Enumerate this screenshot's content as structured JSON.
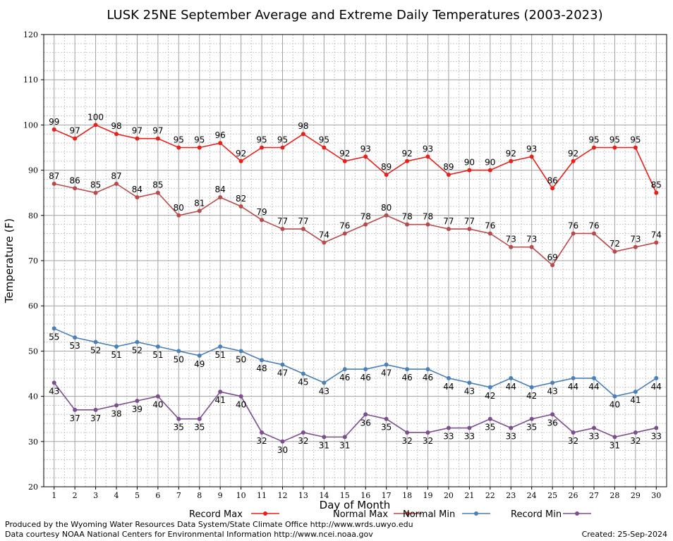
{
  "chart_data": {
    "type": "line",
    "title": "LUSK 25NE September Average and Extreme Daily Temperatures (2003-2023)",
    "xlabel": "Day of Month",
    "ylabel": "Temperature (F)",
    "ylim": [
      20,
      120
    ],
    "yticks": [
      20,
      30,
      40,
      50,
      60,
      70,
      80,
      90,
      100,
      110,
      120
    ],
    "x": [
      1,
      2,
      3,
      4,
      5,
      6,
      7,
      8,
      9,
      10,
      11,
      12,
      13,
      14,
      15,
      16,
      17,
      18,
      19,
      20,
      21,
      22,
      23,
      24,
      25,
      26,
      27,
      28,
      29,
      30
    ],
    "grid": true,
    "legend_position": "bottom",
    "series": [
      {
        "name": "Record Max",
        "color": "#e8201c",
        "values": [
          99,
          97,
          100,
          98,
          97,
          97,
          95,
          95,
          96,
          92,
          95,
          95,
          98,
          95,
          92,
          93,
          89,
          92,
          93,
          89,
          90,
          90,
          92,
          93,
          86,
          92,
          95,
          95,
          95,
          85
        ]
      },
      {
        "name": "Normal Max",
        "color": "#b84a4a",
        "values": [
          87,
          86,
          85,
          87,
          84,
          85,
          80,
          81,
          84,
          82,
          79,
          77,
          77,
          74,
          76,
          78,
          80,
          78,
          78,
          77,
          77,
          76,
          73,
          73,
          69,
          76,
          76,
          72,
          73,
          74
        ]
      },
      {
        "name": "Normal Min",
        "color": "#4a7fb8",
        "values": [
          55,
          53,
          52,
          51,
          52,
          51,
          50,
          49,
          51,
          50,
          48,
          47,
          45,
          43,
          46,
          46,
          47,
          46,
          46,
          44,
          43,
          42,
          44,
          42,
          43,
          44,
          44,
          40,
          41,
          44
        ]
      },
      {
        "name": "Record Min",
        "color": "#7b4f8e",
        "values": [
          43,
          37,
          37,
          38,
          39,
          40,
          35,
          35,
          41,
          40,
          32,
          30,
          32,
          31,
          31,
          36,
          35,
          32,
          32,
          33,
          33,
          35,
          33,
          35,
          36,
          32,
          33,
          31,
          32,
          33
        ]
      }
    ]
  },
  "footer": {
    "line1": "Produced by the Wyoming Water Resources Data System/State Climate Office http://www.wrds.uwyo.edu",
    "line2": "Data courtesy NOAA National Centers for Environmental Information http://www.ncei.noaa.gov",
    "created": "Created:  25-Sep-2024"
  }
}
